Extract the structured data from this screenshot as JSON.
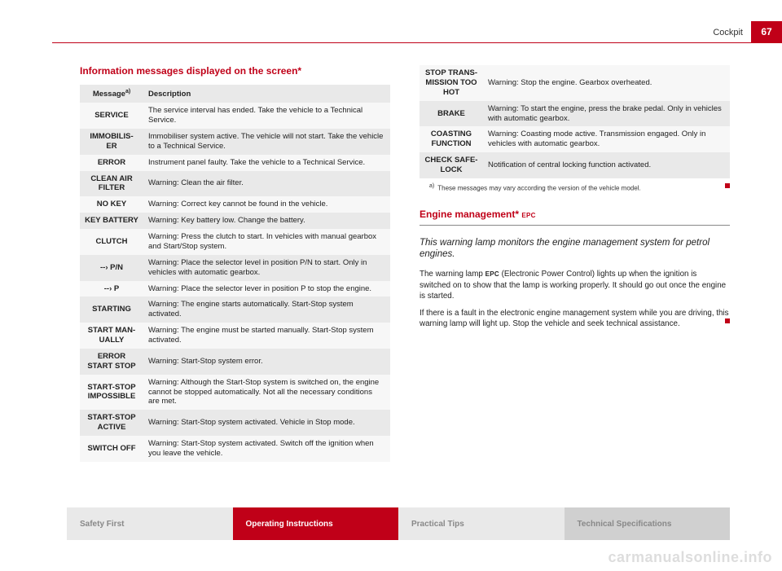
{
  "page": {
    "number": "67",
    "section": "Cockpit"
  },
  "left": {
    "heading": "Information messages displayed on the screen*",
    "table": {
      "headers": {
        "msg": "Message",
        "sup": "a)",
        "desc": "Description"
      },
      "rows": [
        {
          "msg": "SERVICE",
          "desc": "The service interval has ended. Take the vehicle to a Technical Service."
        },
        {
          "msg": "IMMOBILIS-ER",
          "desc": "Immobiliser system active. The vehicle will not start. Take the vehicle to a Technical Service."
        },
        {
          "msg": "ERROR",
          "desc": "Instrument panel faulty. Take the vehicle to a Technical Service."
        },
        {
          "msg": "CLEAN AIR FILTER",
          "desc": "Warning: Clean the air filter."
        },
        {
          "msg": "NO KEY",
          "desc": "Warning: Correct key cannot be found in the vehicle."
        },
        {
          "msg": "KEY BATTERY",
          "desc": "Warning: Key battery low. Change the battery."
        },
        {
          "msg": "CLUTCH",
          "desc": "Warning: Press the clutch to start. In vehicles with manual gearbox and Start/Stop system."
        },
        {
          "msg": "--› P/N",
          "desc": "Warning: Place the selector level in position P/N to start. Only in vehicles with automatic gearbox."
        },
        {
          "msg": "--› P",
          "desc": "Warning: Place the selector lever in position P to stop the engine."
        },
        {
          "msg": "STARTING",
          "desc": "Warning: The engine starts automatically. Start-Stop system activated."
        },
        {
          "msg": "START MAN-UALLY",
          "desc": "Warning: The engine must be started manually. Start-Stop system activated."
        },
        {
          "msg": "ERROR START STOP",
          "desc": "Warning: Start-Stop system error."
        },
        {
          "msg": "START-STOP IMPOSSIBLE",
          "desc": "Warning: Although the Start-Stop system is switched on, the engine cannot be stopped automatically. Not all the necessary conditions are met."
        },
        {
          "msg": "START-STOP ACTIVE",
          "desc": "Warning: Start-Stop system activated. Vehicle in Stop mode."
        },
        {
          "msg": "SWITCH OFF",
          "desc": "Warning: Start-Stop system activated. Switch off the ignition when you leave the vehicle."
        }
      ]
    }
  },
  "right": {
    "table": {
      "rows": [
        {
          "msg": "STOP TRANS-MISSION TOO HOT",
          "desc": "Warning: Stop the engine. Gearbox overheated."
        },
        {
          "msg": "BRAKE",
          "desc": "Warning: To start the engine, press the brake pedal. Only in vehicles with automatic gearbox."
        },
        {
          "msg": "COASTING FUNCTION",
          "desc": "Warning: Coasting mode active. Transmission engaged. Only in vehicles with automatic gearbox."
        },
        {
          "msg": "CHECK SAFE-LOCK",
          "desc": "Notification of central locking function activated."
        }
      ]
    },
    "footnote_sup": "a)",
    "footnote": "These messages may vary according the version of the vehicle model.",
    "engine_heading": "Engine management* ",
    "engine_epc": "EPC",
    "intro": "This warning lamp monitors the engine management system for petrol engines.",
    "p1a": "The warning lamp ",
    "p1_epc": "EPC",
    "p1b": " (Electronic Power Control) lights up when the ignition is switched on to show that the lamp is working properly. It should go out once the engine is started.",
    "p2": "If there is a fault in the electronic engine management system while you are driving, this warning lamp will light up. Stop the vehicle and seek technical assistance."
  },
  "footer": {
    "safety": "Safety First",
    "oper": "Operating Instructions",
    "tips": "Practical Tips",
    "tech": "Technical Specifications"
  },
  "watermark": "carmanualsonline.info"
}
